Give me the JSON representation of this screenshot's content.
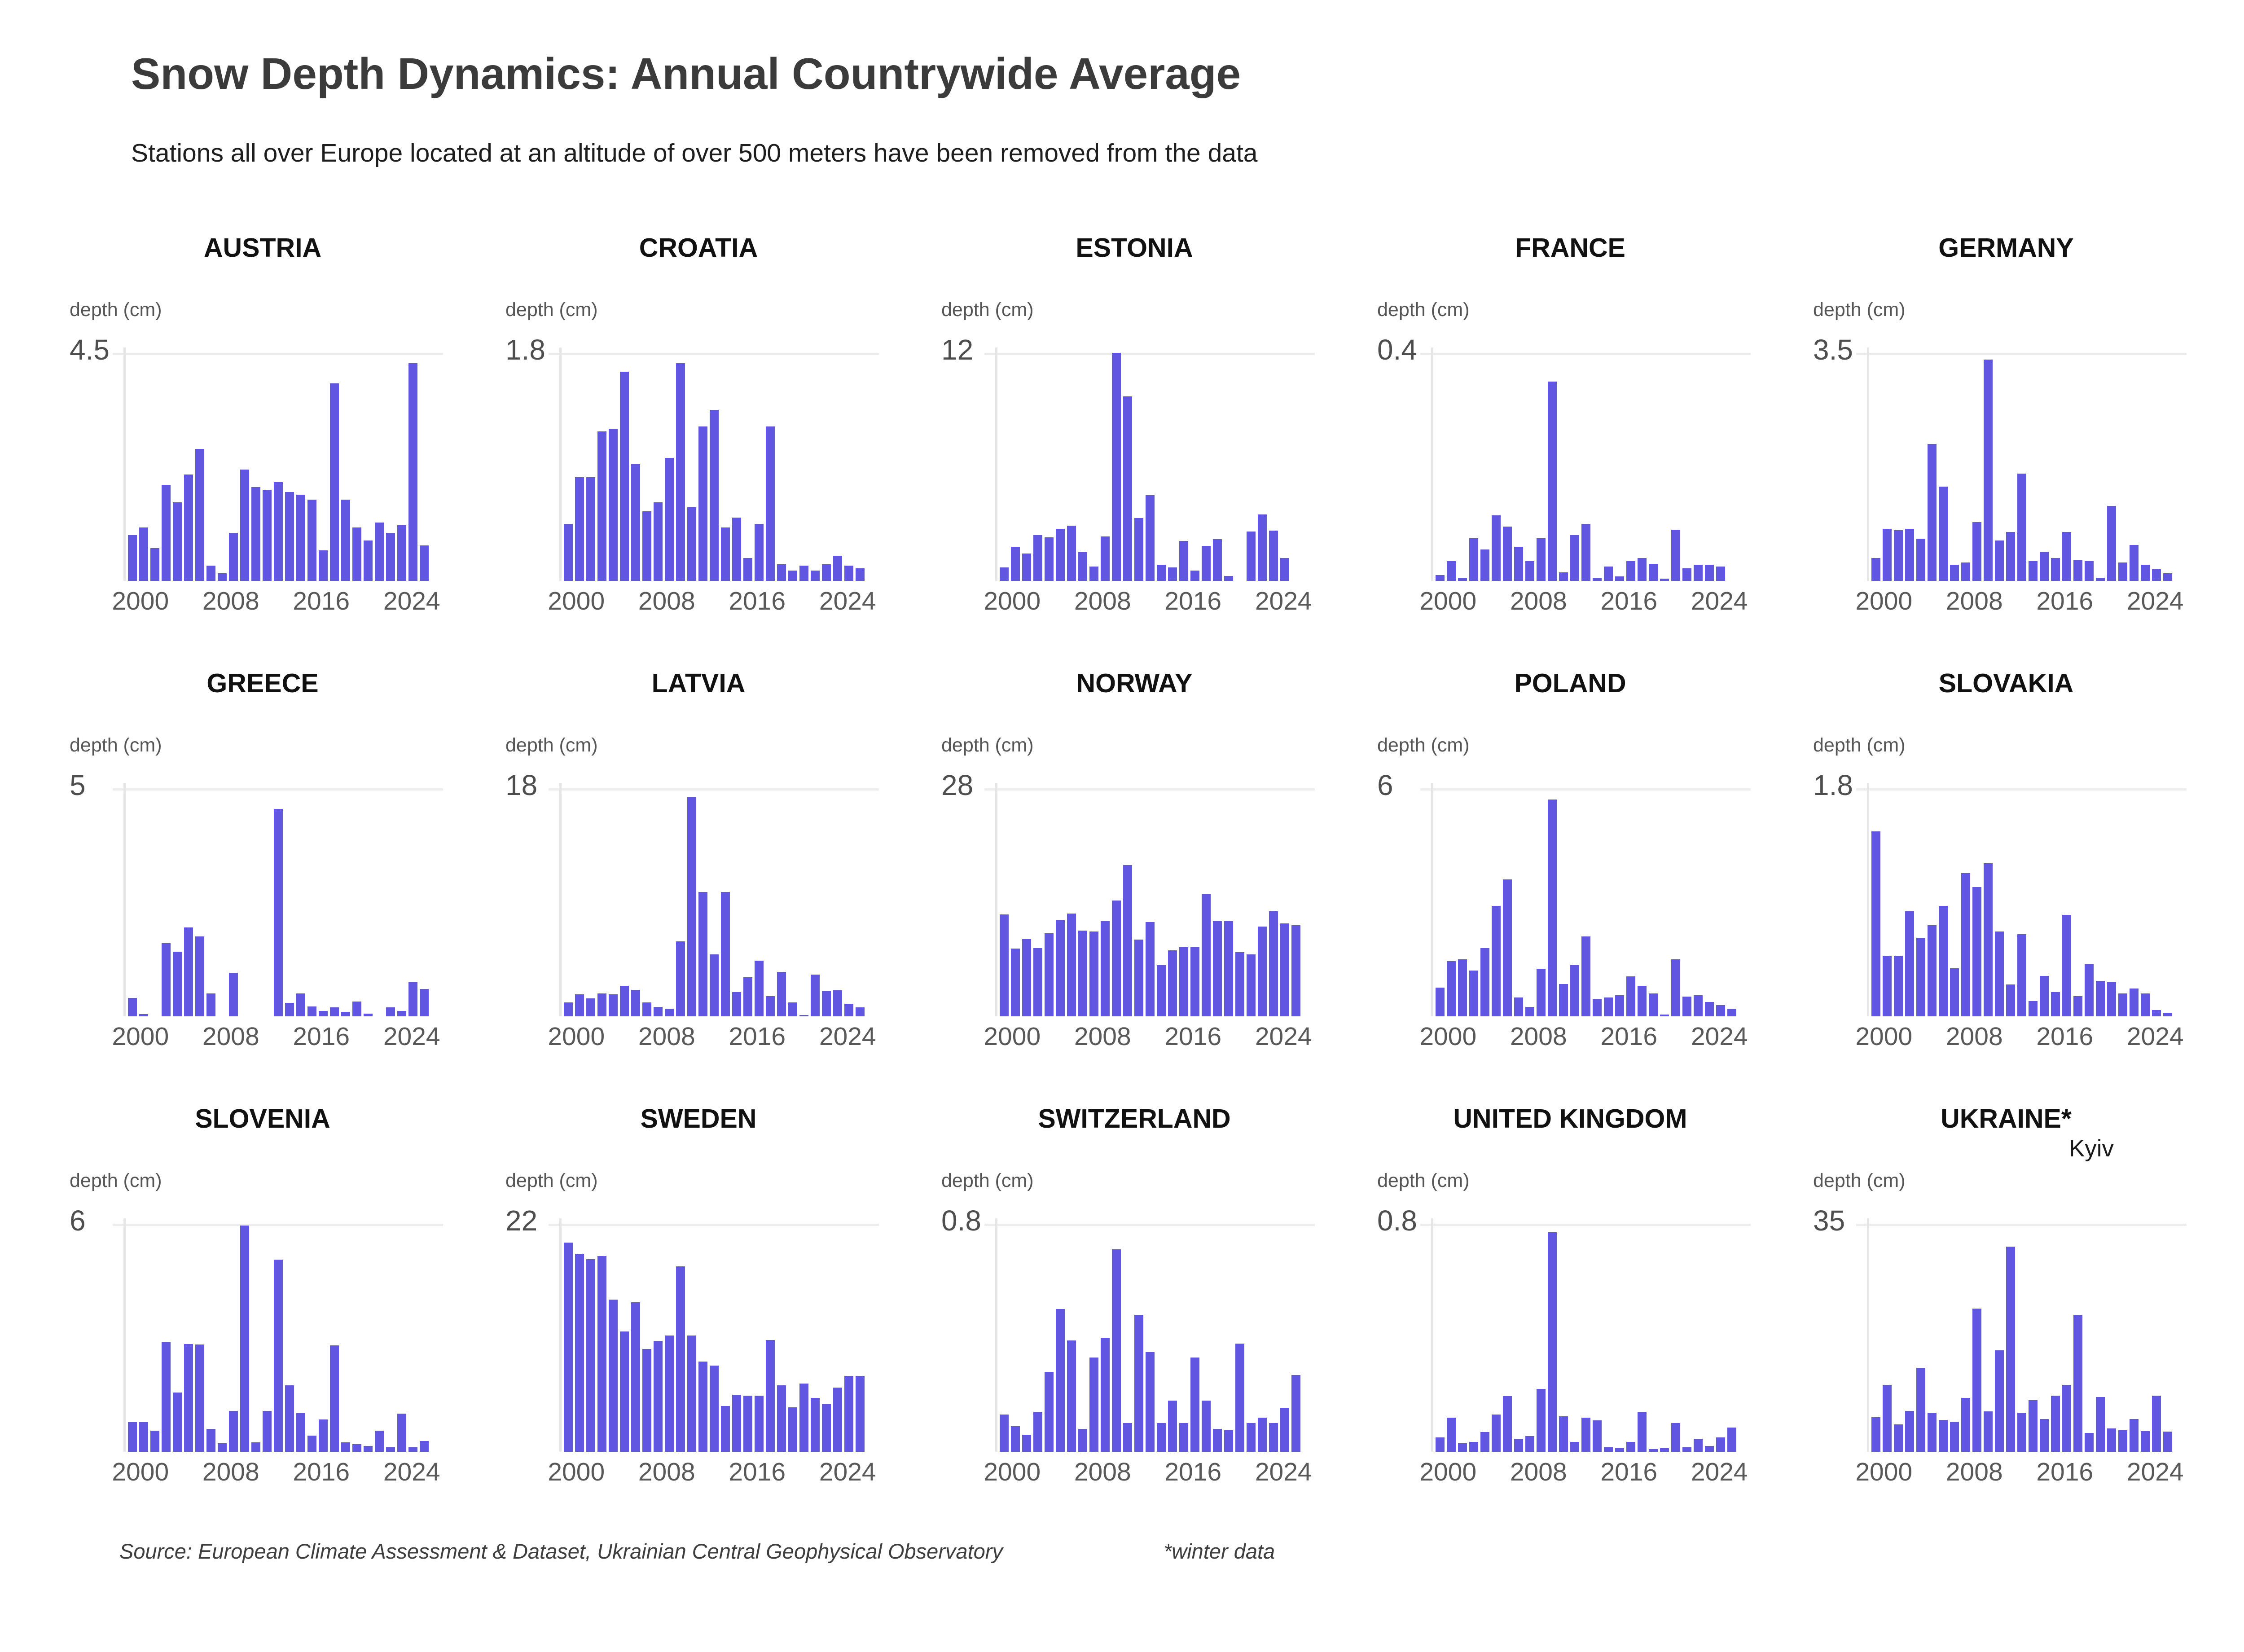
{
  "header": {
    "title": "Snow Depth Dynamics: Annual Countrywide Average",
    "subtitle": "Stations all over Europe located at an altitude of over 500 meters have been removed from the data"
  },
  "footer": {
    "source": "Source: European Climate Assessment & Dataset, Ukrainian Central Geophysical Observatory",
    "note": "*winter data"
  },
  "accent_color": "#6156E2",
  "chart_data": [
    {
      "type": "bar",
      "title": "AUSTRIA",
      "ylabel": "depth (cm)",
      "ymax": 4.5,
      "x_start": 1999,
      "x_end": 2025,
      "xticks": [
        2000,
        2008,
        2016,
        2024
      ],
      "values": [
        0.9,
        1.05,
        0.65,
        1.9,
        1.55,
        2.1,
        2.6,
        0.3,
        0.15,
        0.95,
        2.2,
        1.85,
        1.8,
        1.95,
        1.75,
        1.7,
        1.6,
        0.6,
        3.9,
        1.6,
        1.05,
        0.8,
        1.15,
        0.95,
        1.1,
        4.3,
        0.7
      ]
    },
    {
      "type": "bar",
      "title": "CROATIA",
      "ylabel": "depth (cm)",
      "ymax": 1.8,
      "x_start": 1999,
      "x_end": 2025,
      "xticks": [
        2000,
        2008,
        2016,
        2024
      ],
      "values": [
        0.45,
        0.82,
        0.82,
        1.18,
        1.2,
        1.65,
        0.92,
        0.55,
        0.62,
        0.97,
        1.72,
        0.58,
        1.22,
        1.35,
        0.42,
        0.5,
        0.18,
        0.45,
        1.22,
        0.13,
        0.08,
        0.12,
        0.08,
        0.13,
        0.2,
        0.12,
        0.1
      ]
    },
    {
      "type": "bar",
      "title": "ESTONIA",
      "ylabel": "depth (cm)",
      "ymax": 12,
      "x_start": 1999,
      "x_end": 2025,
      "xticks": [
        2000,
        2008,
        2016,
        2024
      ],
      "values": [
        0.7,
        1.8,
        1.45,
        2.4,
        2.3,
        2.75,
        2.9,
        1.5,
        0.75,
        2.35,
        12.0,
        9.7,
        3.3,
        4.5,
        0.85,
        0.7,
        2.1,
        0.55,
        1.85,
        2.2,
        0.25,
        0.0,
        2.6,
        3.5,
        2.65,
        1.2,
        0.0
      ]
    },
    {
      "type": "bar",
      "title": "FRANCE",
      "ylabel": "depth (cm)",
      "ymax": 0.4,
      "x_start": 1999,
      "x_end": 2025,
      "xticks": [
        2000,
        2008,
        2016,
        2024
      ],
      "values": [
        0.01,
        0.035,
        0.005,
        0.075,
        0.055,
        0.115,
        0.095,
        0.06,
        0.035,
        0.075,
        0.35,
        0.015,
        0.08,
        0.1,
        0.005,
        0.025,
        0.008,
        0.035,
        0.04,
        0.03,
        0.004,
        0.09,
        0.022,
        0.028,
        0.028,
        0.025,
        0.0
      ]
    },
    {
      "type": "bar",
      "title": "GERMANY",
      "ylabel": "depth (cm)",
      "ymax": 3.5,
      "x_start": 1999,
      "x_end": 2025,
      "xticks": [
        2000,
        2008,
        2016,
        2024
      ],
      "values": [
        0.35,
        0.8,
        0.78,
        0.8,
        0.65,
        2.1,
        1.45,
        0.25,
        0.28,
        0.9,
        3.4,
        0.62,
        0.75,
        1.65,
        0.3,
        0.45,
        0.35,
        0.75,
        0.32,
        0.3,
        0.05,
        1.15,
        0.28,
        0.55,
        0.25,
        0.18,
        0.12
      ]
    },
    {
      "type": "bar",
      "title": "GREECE",
      "ylabel": "depth (cm)",
      "ymax": 5,
      "x_start": 1999,
      "x_end": 2025,
      "xticks": [
        2000,
        2008,
        2016,
        2024
      ],
      "values": [
        0.4,
        0.05,
        0.0,
        1.6,
        1.42,
        1.95,
        1.75,
        0.5,
        0.0,
        0.95,
        0.0,
        0.0,
        0.0,
        4.55,
        0.3,
        0.5,
        0.22,
        0.12,
        0.2,
        0.1,
        0.32,
        0.06,
        0.0,
        0.2,
        0.12,
        0.75,
        0.6
      ]
    },
    {
      "type": "bar",
      "title": "LATVIA",
      "ylabel": "depth (cm)",
      "ymax": 18,
      "x_start": 1999,
      "x_end": 2025,
      "xticks": [
        2000,
        2008,
        2016,
        2024
      ],
      "values": [
        1.1,
        1.75,
        1.4,
        1.8,
        1.75,
        2.4,
        2.1,
        1.1,
        0.75,
        0.6,
        5.9,
        17.3,
        9.8,
        4.9,
        9.8,
        1.9,
        3.1,
        4.4,
        1.6,
        3.5,
        1.1,
        0.1,
        3.3,
        2.0,
        2.05,
        1.0,
        0.7
      ]
    },
    {
      "type": "bar",
      "title": "NORWAY",
      "ylabel": "depth (cm)",
      "ymax": 28,
      "x_start": 1999,
      "x_end": 2025,
      "xticks": [
        2000,
        2008,
        2016,
        2024
      ],
      "values": [
        12.5,
        8.3,
        9.5,
        8.4,
        10.2,
        11.8,
        12.6,
        10.5,
        10.4,
        11.7,
        14.2,
        18.6,
        9.4,
        11.6,
        6.3,
        8.1,
        8.5,
        8.5,
        15.0,
        11.7,
        11.7,
        7.9,
        7.6,
        11.0,
        12.9,
        11.4,
        11.2
      ]
    },
    {
      "type": "bar",
      "title": "POLAND",
      "ylabel": "depth (cm)",
      "ymax": 6,
      "x_start": 1999,
      "x_end": 2025,
      "xticks": [
        2000,
        2008,
        2016,
        2024
      ],
      "values": [
        0.75,
        1.45,
        1.5,
        1.2,
        1.8,
        2.9,
        3.6,
        0.5,
        0.25,
        1.25,
        5.7,
        0.85,
        1.35,
        2.1,
        0.45,
        0.5,
        0.55,
        1.05,
        0.8,
        0.6,
        0.05,
        1.5,
        0.52,
        0.55,
        0.38,
        0.3,
        0.2
      ]
    },
    {
      "type": "bar",
      "title": "SLOVAKIA",
      "ylabel": "depth (cm)",
      "ymax": 1.8,
      "x_start": 1999,
      "x_end": 2025,
      "xticks": [
        2000,
        2008,
        2016,
        2024
      ],
      "values": [
        1.46,
        0.48,
        0.48,
        0.83,
        0.62,
        0.72,
        0.87,
        0.38,
        1.13,
        1.02,
        1.21,
        0.67,
        0.25,
        0.65,
        0.12,
        0.32,
        0.19,
        0.8,
        0.16,
        0.41,
        0.28,
        0.27,
        0.18,
        0.22,
        0.18,
        0.05,
        0.03
      ]
    },
    {
      "type": "bar",
      "title": "SLOVENIA",
      "ylabel": "depth (cm)",
      "ymax": 6,
      "x_start": 1999,
      "x_end": 2025,
      "xticks": [
        2000,
        2008,
        2016,
        2024
      ],
      "values": [
        0.78,
        0.78,
        0.55,
        2.88,
        1.56,
        2.83,
        2.82,
        0.6,
        0.22,
        1.07,
        5.95,
        0.25,
        1.07,
        5.05,
        1.75,
        1.02,
        0.42,
        0.85,
        2.8,
        0.25,
        0.2,
        0.15,
        0.55,
        0.12,
        1.0,
        0.12,
        0.28
      ]
    },
    {
      "type": "bar",
      "title": "SWEDEN",
      "ylabel": "depth (cm)",
      "ymax": 22,
      "x_start": 1999,
      "x_end": 2025,
      "xticks": [
        2000,
        2008,
        2016,
        2024
      ],
      "values": [
        20.2,
        19.1,
        18.6,
        18.9,
        14.7,
        11.6,
        14.4,
        9.9,
        10.7,
        11.2,
        17.9,
        11.2,
        8.7,
        8.3,
        4.4,
        5.5,
        5.4,
        5.4,
        10.8,
        6.4,
        4.3,
        6.6,
        5.2,
        4.6,
        6.2,
        7.3,
        7.3
      ]
    },
    {
      "type": "bar",
      "title": "SWITZERLAND",
      "ylabel": "depth (cm)",
      "ymax": 0.8,
      "x_start": 1999,
      "x_end": 2025,
      "xticks": [
        2000,
        2008,
        2016,
        2024
      ],
      "values": [
        0.13,
        0.09,
        0.06,
        0.14,
        0.28,
        0.5,
        0.39,
        0.08,
        0.33,
        0.4,
        0.71,
        0.1,
        0.48,
        0.35,
        0.1,
        0.18,
        0.1,
        0.33,
        0.18,
        0.08,
        0.075,
        0.38,
        0.1,
        0.12,
        0.1,
        0.155,
        0.27
      ]
    },
    {
      "type": "bar",
      "title": "UNITED KINGDOM",
      "ylabel": "depth (cm)",
      "ymax": 0.8,
      "x_start": 1999,
      "x_end": 2025,
      "xticks": [
        2000,
        2008,
        2016,
        2024
      ],
      "values": [
        0.05,
        0.12,
        0.03,
        0.035,
        0.07,
        0.13,
        0.195,
        0.045,
        0.055,
        0.22,
        0.77,
        0.125,
        0.035,
        0.12,
        0.11,
        0.015,
        0.012,
        0.035,
        0.14,
        0.01,
        0.012,
        0.1,
        0.015,
        0.045,
        0.02,
        0.05,
        0.085
      ]
    },
    {
      "type": "bar",
      "title": "UKRAINE*",
      "subtitle": "Kyiv",
      "ylabel": "depth (cm)",
      "ymax": 35,
      "x_start": 1999,
      "x_end": 2025,
      "xticks": [
        2000,
        2008,
        2016,
        2024
      ],
      "values": [
        5.3,
        10.3,
        4.2,
        6.3,
        12.9,
        6.0,
        4.9,
        4.6,
        8.3,
        22.0,
        6.2,
        15.6,
        31.5,
        6.0,
        7.9,
        5.0,
        8.6,
        10.3,
        21.0,
        2.9,
        8.4,
        3.6,
        3.3,
        5.0,
        3.2,
        8.6,
        3.1
      ]
    }
  ]
}
